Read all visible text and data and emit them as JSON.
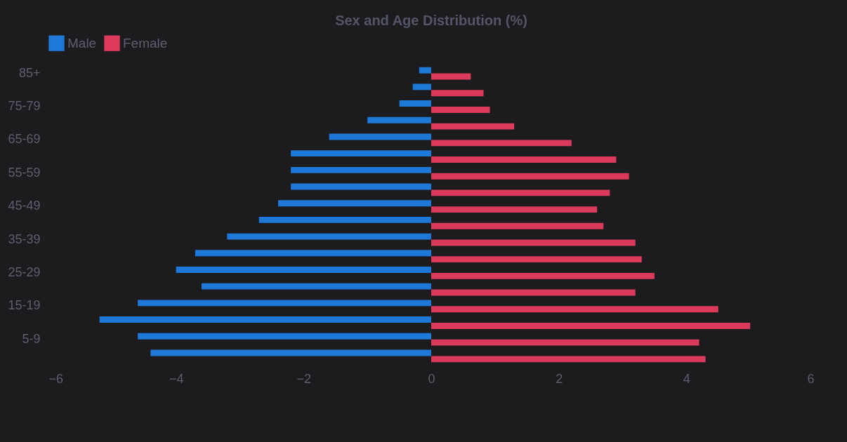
{
  "chart_data": {
    "type": "bar",
    "orientation": "horizontal",
    "title": "Sex and Age Distribution (%)",
    "categories": [
      "85+",
      null,
      "75-79",
      null,
      "65-69",
      null,
      "55-59",
      null,
      "45-49",
      null,
      "35-39",
      null,
      "25-29",
      null,
      "15-19",
      null,
      "5-9",
      null
    ],
    "series": [
      {
        "name": "Male",
        "color": "#1e78d7",
        "values": [
          -0.19,
          -0.29,
          -0.5,
          -1.0,
          -1.6,
          -2.2,
          -2.2,
          -2.2,
          -2.4,
          -2.7,
          -3.2,
          -3.7,
          -4.0,
          -3.6,
          -4.6,
          -5.2,
          -4.6,
          -4.4
        ]
      },
      {
        "name": "Female",
        "color": "#dc3a5a",
        "values": [
          0.62,
          0.82,
          0.92,
          1.3,
          2.2,
          2.9,
          3.1,
          2.8,
          2.6,
          2.7,
          3.2,
          3.3,
          3.5,
          3.2,
          4.5,
          5.0,
          4.2,
          4.3
        ]
      }
    ],
    "xlim": [
      -6,
      6
    ],
    "xticks": [
      -6,
      -4,
      -2,
      0,
      2,
      4,
      6
    ],
    "grid": false,
    "legend": "top"
  }
}
